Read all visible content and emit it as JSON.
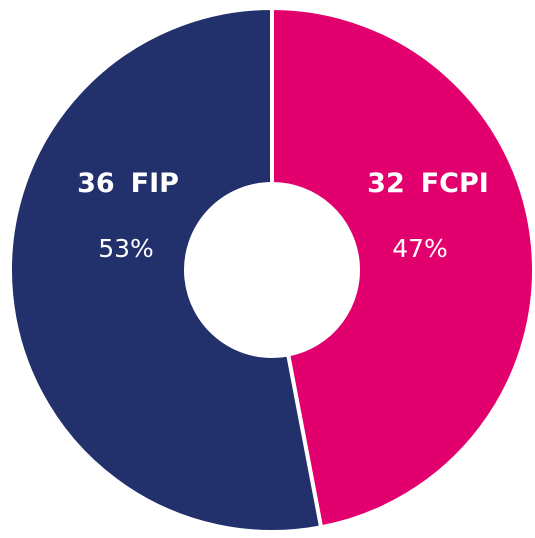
{
  "chart_data": {
    "type": "donut",
    "categories": [
      "FCPI",
      "FIP"
    ],
    "counts": [
      32,
      36
    ],
    "values": [
      47,
      53
    ],
    "value_labels": [
      "47%",
      "53%"
    ],
    "colors": [
      "#e2006f",
      "#22306b"
    ]
  }
}
